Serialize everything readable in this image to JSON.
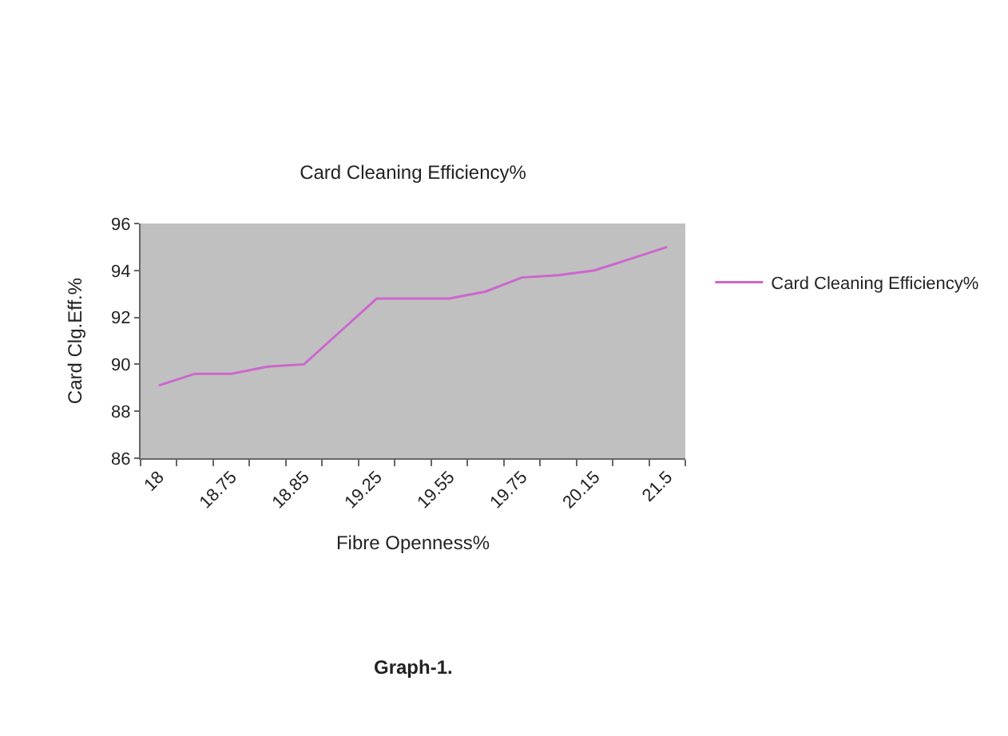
{
  "chart_data": {
    "type": "line",
    "title": "Card Cleaning Efficiency%",
    "xlabel": "Fibre Openness%",
    "ylabel": "Card Clg.Eff.%",
    "categories": [
      "18",
      null,
      "18.75",
      null,
      "18.85",
      null,
      "19.25",
      null,
      "19.55",
      null,
      "19.75",
      null,
      "20.15",
      null,
      "21.5"
    ],
    "series": [
      {
        "name": "Card Cleaning Efficiency%",
        "color": "#cc66cc",
        "values": [
          89.1,
          89.6,
          89.6,
          89.9,
          90.0,
          91.4,
          92.8,
          92.8,
          92.8,
          93.1,
          93.7,
          93.8,
          94.0,
          94.5,
          95.0
        ]
      }
    ],
    "ylim": [
      86,
      96
    ],
    "yticks": [
      86,
      88,
      90,
      92,
      94,
      96
    ],
    "grid": false,
    "legend": "right",
    "marker": "none",
    "line_style": "solid",
    "annotations": [
      "Graph-1."
    ]
  }
}
